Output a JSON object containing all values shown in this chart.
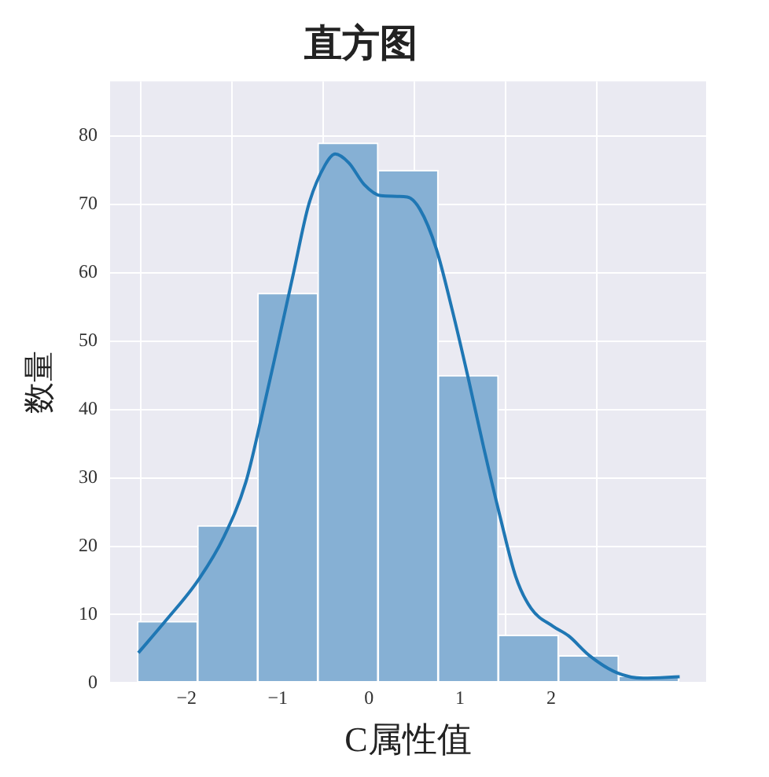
{
  "chart_data": {
    "type": "histogram",
    "title": "直方图",
    "xlabel": "C属性值",
    "ylabel": "数量",
    "bins": [
      -2.54,
      -1.88,
      -1.22,
      -0.56,
      0.1,
      0.76,
      1.42,
      2.08,
      2.74,
      3.4
    ],
    "values": [
      9,
      23,
      57,
      79,
      75,
      45,
      7,
      4,
      1
    ],
    "color": "#86b0d4",
    "series": [
      {
        "type": "line",
        "color": "#1f77b4",
        "x": [
          -2.53,
          -2.23,
          -1.88,
          -1.59,
          -1.35,
          -1.18,
          -1.01,
          -0.83,
          -0.66,
          -0.48,
          -0.37,
          -0.22,
          -0.05,
          0.13,
          0.42,
          0.56,
          0.74,
          0.91,
          1.09,
          1.26,
          1.44,
          1.61,
          1.78,
          2.02,
          2.19,
          2.42,
          2.72,
          3.01,
          3.41
        ],
        "values": [
          4.4,
          9.1,
          14.9,
          21.4,
          29.4,
          38.8,
          48.9,
          59.8,
          70,
          75.8,
          77.4,
          76.1,
          72.9,
          71.3,
          71.1,
          69.3,
          63.5,
          54.8,
          44.6,
          34.4,
          24.3,
          15.6,
          10.9,
          8.3,
          6.9,
          4,
          1.5,
          0.7,
          0.9
        ]
      }
    ],
    "xlim": [
      -2.84,
      3.7
    ],
    "xticks": [
      {
        "value": -2,
        "label": "−2"
      },
      {
        "value": -1,
        "label": "−1"
      },
      0,
      1,
      2
    ],
    "ylim": [
      0,
      88
    ],
    "yticks": [
      0,
      10,
      20,
      30,
      40,
      50,
      60,
      70,
      80
    ],
    "grid": true,
    "marker": "none"
  }
}
